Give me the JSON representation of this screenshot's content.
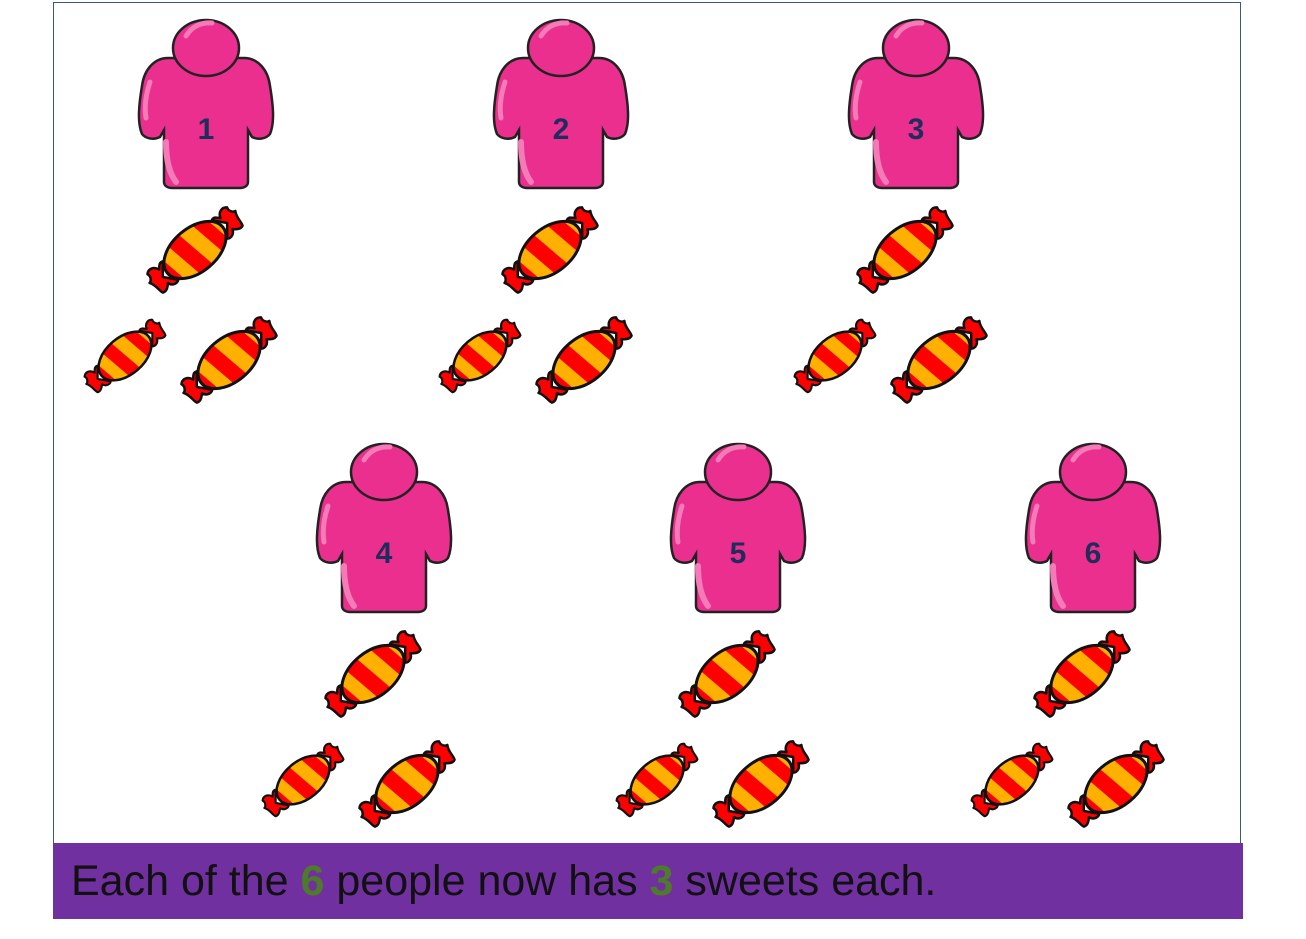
{
  "colors": {
    "person_fill": "#ea2f8f",
    "person_highlight": "#f47ab8",
    "label": "#1f2d5a",
    "sweet_red": "#ff0000",
    "sweet_orange": "#ffb000",
    "caption_bg": "#7030a0",
    "caption_text": "#111111",
    "caption_highlight": "#4e7b2a"
  },
  "groups": [
    {
      "label": "1",
      "sweet_count": 3
    },
    {
      "label": "2",
      "sweet_count": 3
    },
    {
      "label": "3",
      "sweet_count": 3
    },
    {
      "label": "4",
      "sweet_count": 3
    },
    {
      "label": "5",
      "sweet_count": 3
    },
    {
      "label": "6",
      "sweet_count": 3
    }
  ],
  "caption": {
    "part1": "Each of the ",
    "people_count": "6",
    "part2": " people now has ",
    "sweets_count": "3",
    "part3": " sweets each."
  }
}
